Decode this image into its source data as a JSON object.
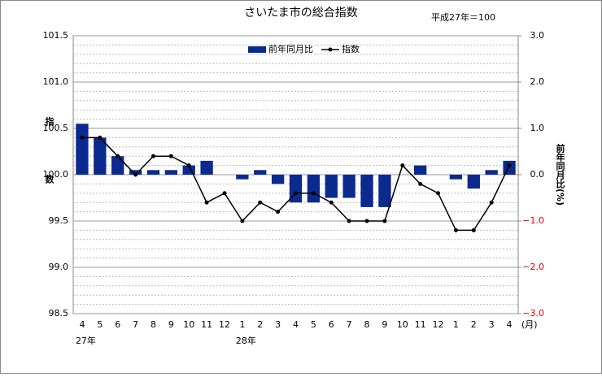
{
  "chart_data": {
    "type": "bar_line",
    "title": "さいたま市の総合指数",
    "subtitle": "平成27年＝100",
    "y_label": "指数",
    "y2_label": "前年同月比(%)",
    "x_unit": "(月)",
    "categories": [
      "4",
      "5",
      "6",
      "7",
      "8",
      "9",
      "10",
      "11",
      "12",
      "1",
      "2",
      "3",
      "4",
      "5",
      "6",
      "7",
      "8",
      "9",
      "10",
      "11",
      "12",
      "1",
      "2",
      "3",
      "4"
    ],
    "category_groups": [
      "27年",
      null,
      null,
      null,
      null,
      null,
      null,
      null,
      null,
      "28年",
      null,
      null,
      null,
      null,
      null,
      null,
      null,
      null,
      null,
      null,
      null,
      null,
      null,
      null,
      null
    ],
    "series": [
      {
        "name": "前年同月比",
        "type": "bar",
        "axis": "y2",
        "color": "#0b2a8f",
        "values": [
          1.1,
          0.8,
          0.4,
          0.1,
          0.1,
          0.1,
          0.2,
          0.3,
          0,
          -0.1,
          0.1,
          -0.2,
          -0.6,
          -0.6,
          -0.5,
          -0.5,
          -0.7,
          -0.7,
          0,
          0.2,
          0,
          -0.1,
          -0.3,
          0.1,
          0.3
        ]
      },
      {
        "name": "指数",
        "type": "line",
        "color": "#000000",
        "values": [
          100.4,
          100.4,
          100.2,
          100.0,
          100.2,
          100.2,
          100.1,
          99.7,
          99.8,
          99.5,
          99.7,
          99.6,
          99.8,
          99.8,
          99.7,
          99.5,
          99.5,
          99.5,
          100.1,
          99.9,
          99.8,
          99.4,
          99.4,
          99.7,
          100.1
        ]
      }
    ],
    "ylim": [
      98.5,
      101.5
    ],
    "yticks": [
      98.5,
      {
        "value": 99,
        "label": "99.0"
      },
      99.5,
      {
        "value": 100,
        "label": "100.0"
      },
      100.5,
      {
        "value": 101,
        "label": "101.0"
      },
      101.5
    ],
    "y2lim": [
      -3,
      3
    ],
    "y2ticks": [
      {
        "value": -3,
        "label": "−3.0"
      },
      {
        "value": -2,
        "label": "−2.0"
      },
      {
        "value": -1,
        "label": "−1.0"
      },
      {
        "value": 0,
        "label": "0.0"
      },
      {
        "value": 1,
        "label": "1.0"
      },
      {
        "value": 2,
        "label": "2.0"
      },
      {
        "value": 3,
        "label": "3.0"
      }
    ],
    "negative_tick_color": "#e00000",
    "grid": true
  }
}
